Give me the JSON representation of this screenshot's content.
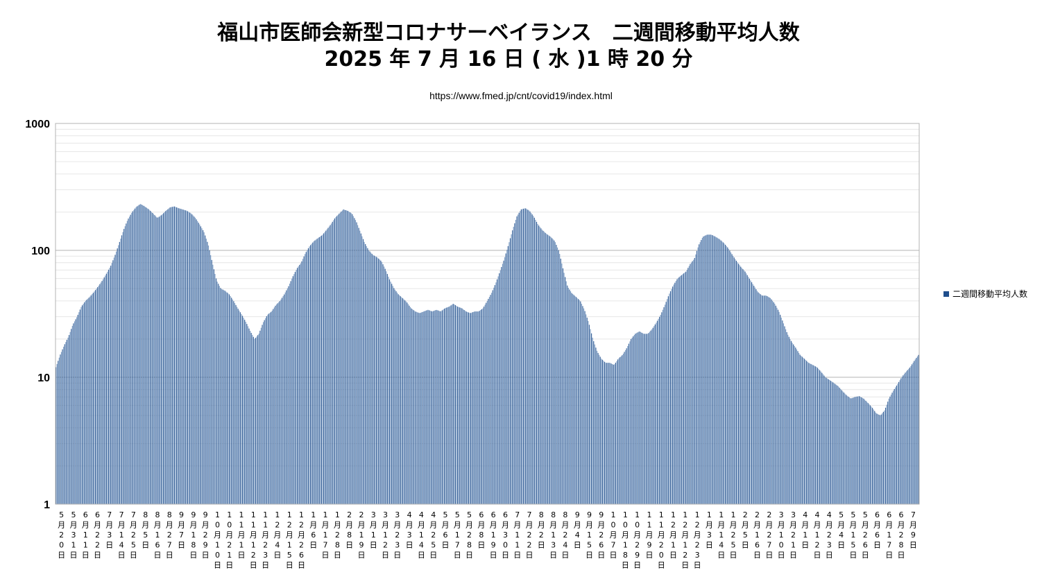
{
  "title_line1": "福山市医師会新型コロナサーベイランス　二週間移動平均人数",
  "title_line2": "2025 年 7 月 16 日 ( 水 )1 時 20 分",
  "subtitle": "https://www.fmed.jp/cnt/covid19/index.html",
  "colors": {
    "bar_fill": "#7b9cc4",
    "bar_edge": "#1f4e8c",
    "grid": "#bfbfbf",
    "legend": "#1f4e8c"
  },
  "chart_data": {
    "type": "bar",
    "y_scale": "log",
    "ylim": [
      1,
      1000
    ],
    "y_ticks": [
      "1",
      "10",
      "100",
      "1000"
    ],
    "grid": true,
    "legend_position": "right",
    "legend_label": "二週間移動平均人数",
    "x_start_date": "2023-05-20",
    "x_end_date": "2025-07-12",
    "x_tick_labels": [
      "5月20日",
      "5月31日",
      "6月11日",
      "6月22日",
      "7月3日",
      "7月14日",
      "7月25日",
      "8月5日",
      "8月16日",
      "8月27日",
      "9月7日",
      "9月18日",
      "9月29日",
      "10月10日",
      "10月21日",
      "11月1日",
      "11月12日",
      "11月23日",
      "12月4日",
      "12月15日",
      "12月26日",
      "1月6日",
      "1月17日",
      "1月28日",
      "2月8日",
      "2月19日",
      "3月1日",
      "3月12日",
      "3月23日",
      "4月3日",
      "4月14日",
      "4月25日",
      "5月6日",
      "5月17日",
      "5月28日",
      "6月8日",
      "6月19日",
      "6月30日",
      "7月11日",
      "7月22日",
      "8月2日",
      "8月13日",
      "8月24日",
      "9月4日",
      "9月15日",
      "9月26日",
      "10月7日",
      "10月18日",
      "10月29日",
      "11月9日",
      "11月20日",
      "12月1日",
      "12月12日",
      "12月23日",
      "1月3日",
      "1月14日",
      "1月25日",
      "2月5日",
      "2月16日",
      "2月27日",
      "3月10日",
      "3月21日",
      "4月1日",
      "4月12日",
      "4月23日",
      "5月4日",
      "5月15日",
      "5月26日",
      "6月6日",
      "6月17日",
      "6月28日",
      "7月9日"
    ],
    "series": [
      {
        "name": "二週間移動平均人数",
        "values": [
          12,
          15,
          18,
          21,
          26,
          30,
          36,
          40,
          43,
          47,
          52,
          58,
          66,
          76,
          92,
          115,
          145,
          175,
          200,
          220,
          232,
          222,
          210,
          195,
          180,
          190,
          205,
          218,
          222,
          215,
          210,
          205,
          195,
          180,
          160,
          140,
          112,
          80,
          58,
          50,
          48,
          45,
          40,
          35,
          31,
          27,
          23,
          20,
          22,
          27,
          31,
          33,
          37,
          40,
          45,
          52,
          62,
          72,
          80,
          95,
          108,
          118,
          125,
          132,
          145,
          160,
          180,
          195,
          210,
          205,
          195,
          170,
          140,
          115,
          100,
          92,
          88,
          82,
          70,
          58,
          50,
          45,
          42,
          39,
          35,
          33,
          32,
          33,
          34,
          33,
          34,
          33,
          35,
          36,
          38,
          36,
          35,
          33,
          32,
          33,
          33,
          35,
          40,
          46,
          55,
          68,
          85,
          110,
          145,
          185,
          210,
          215,
          205,
          185,
          160,
          145,
          135,
          128,
          118,
          98,
          70,
          52,
          46,
          43,
          40,
          34,
          27,
          20,
          16,
          14,
          13,
          13,
          12.5,
          14,
          15,
          17,
          20,
          22,
          23,
          22,
          22,
          24,
          27,
          31,
          37,
          45,
          53,
          60,
          64,
          68,
          78,
          86,
          110,
          128,
          133,
          133,
          128,
          122,
          114,
          104,
          92,
          82,
          74,
          68,
          60,
          53,
          47,
          44,
          44,
          42,
          38,
          33,
          27,
          22,
          19,
          17,
          15,
          14,
          13,
          12.5,
          12,
          11,
          10,
          9.5,
          9,
          8.5,
          7.8,
          7.2,
          6.8,
          7,
          7.1,
          6.8,
          6.3,
          5.8,
          5.2,
          5,
          5.5,
          6.8,
          7.8,
          8.8,
          10,
          11,
          12,
          13.5,
          15
        ]
      }
    ]
  }
}
